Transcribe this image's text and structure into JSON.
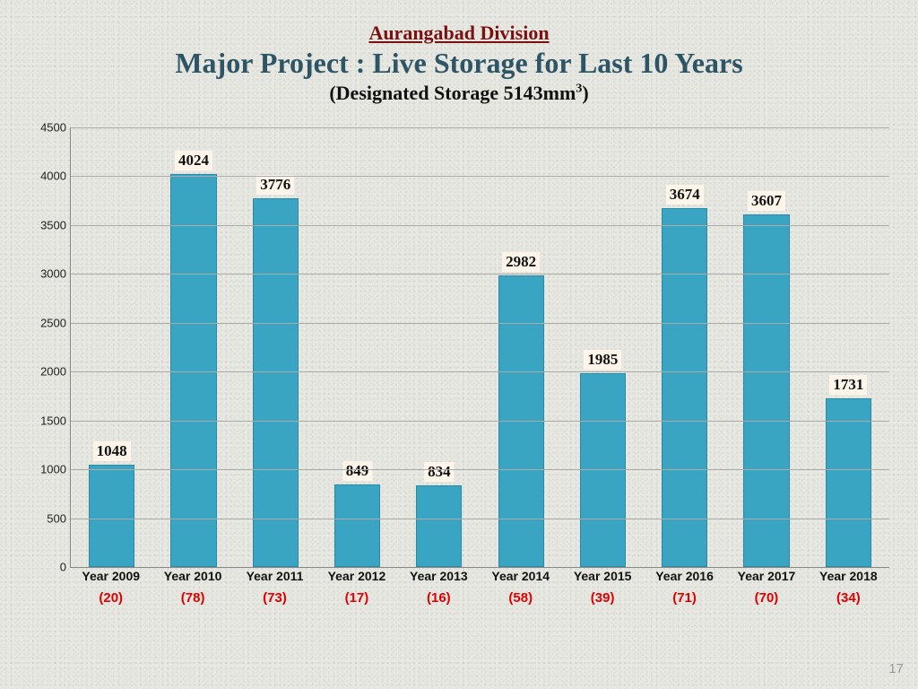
{
  "header": {
    "division": "Aurangabad Division",
    "title": "Major Project : Live Storage for Last 10 Years",
    "subtitle_prefix": "(Designated Storage 5143mm",
    "subtitle_suffix": ")",
    "subtitle_sup": "3"
  },
  "chart": {
    "type": "bar",
    "ylim": [
      0,
      4500
    ],
    "ytick_step": 500,
    "y_ticks": [
      0,
      500,
      1000,
      1500,
      2000,
      2500,
      3000,
      3500,
      4000,
      4500
    ],
    "bar_color": "#3aa5c3",
    "bar_border": "#2a8aa5",
    "grid_color": "#aaaaaa",
    "value_bg": "#fef5ea",
    "background": "#e8e8e2",
    "title_color": "#2d5566",
    "division_color": "#7a1010",
    "pct_color": "#e00000",
    "categories": [
      "Year 2009",
      "Year 2010",
      "Year 2011",
      "Year 2012",
      "Year 2013",
      "Year 2014",
      "Year 2015",
      "Year 2016",
      "Year 2017",
      "Year  2018"
    ],
    "values": [
      1048,
      4024,
      3776,
      849,
      834,
      2982,
      1985,
      3674,
      3607,
      1731
    ],
    "pct_labels": [
      "(20)",
      "(78)",
      "(73)",
      "(17)",
      "(16)",
      "(58)",
      "(39)",
      "(71)",
      "(70)",
      "(34)"
    ]
  },
  "page_number": "17"
}
